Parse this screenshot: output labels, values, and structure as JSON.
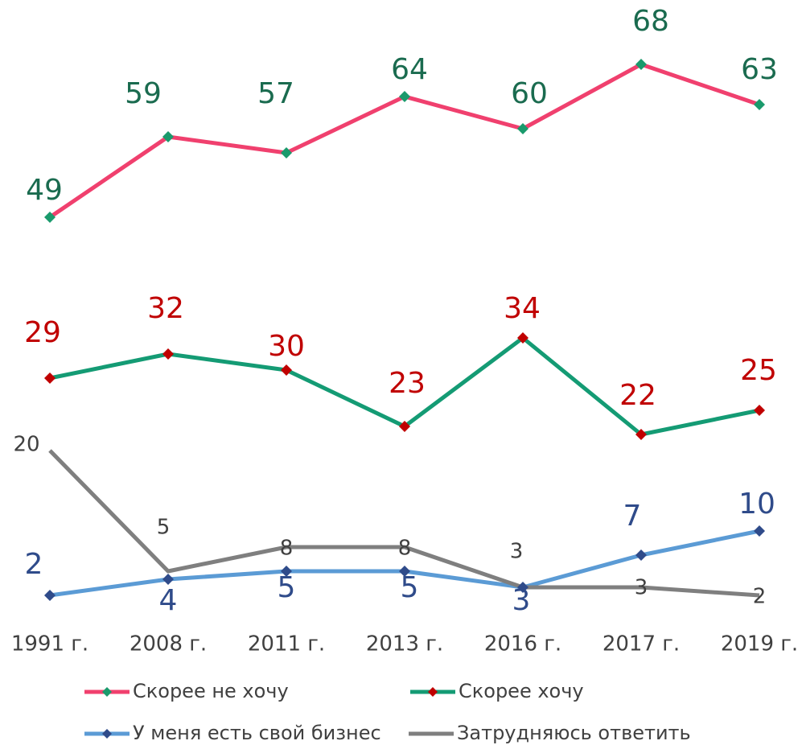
{
  "chart_data": {
    "type": "line",
    "categories": [
      "1991 г.",
      "2008 г.",
      "2011 г.",
      "2013 г.",
      "2016 г.",
      "2017 г.",
      "2019 г."
    ],
    "ylim": [
      0,
      76
    ],
    "series": [
      {
        "name": "Скорее не хочу",
        "color": "#f0406e",
        "marker_color": "#1a9a6c",
        "label_color": "#1a6b4f",
        "values": [
          49,
          59,
          57,
          64,
          60,
          68,
          63
        ]
      },
      {
        "name": "Скорее хочу",
        "color": "#149b74",
        "marker_color": "#c00000",
        "label_color": "#c00000",
        "values": [
          29,
          32,
          30,
          23,
          34,
          22,
          25
        ]
      },
      {
        "name": "У меня есть свой бизнес",
        "color": "#5b9bd5",
        "marker_color": "#2f4b8a",
        "label_color": "#2f4b8a",
        "values": [
          2,
          4,
          5,
          5,
          3,
          7,
          10
        ]
      },
      {
        "name": "Затрудняюсь ответить",
        "color": "#7f7f7f",
        "marker_color": null,
        "label_color": "#404040",
        "values": [
          20,
          5,
          8,
          8,
          3,
          3,
          2
        ]
      }
    ]
  }
}
